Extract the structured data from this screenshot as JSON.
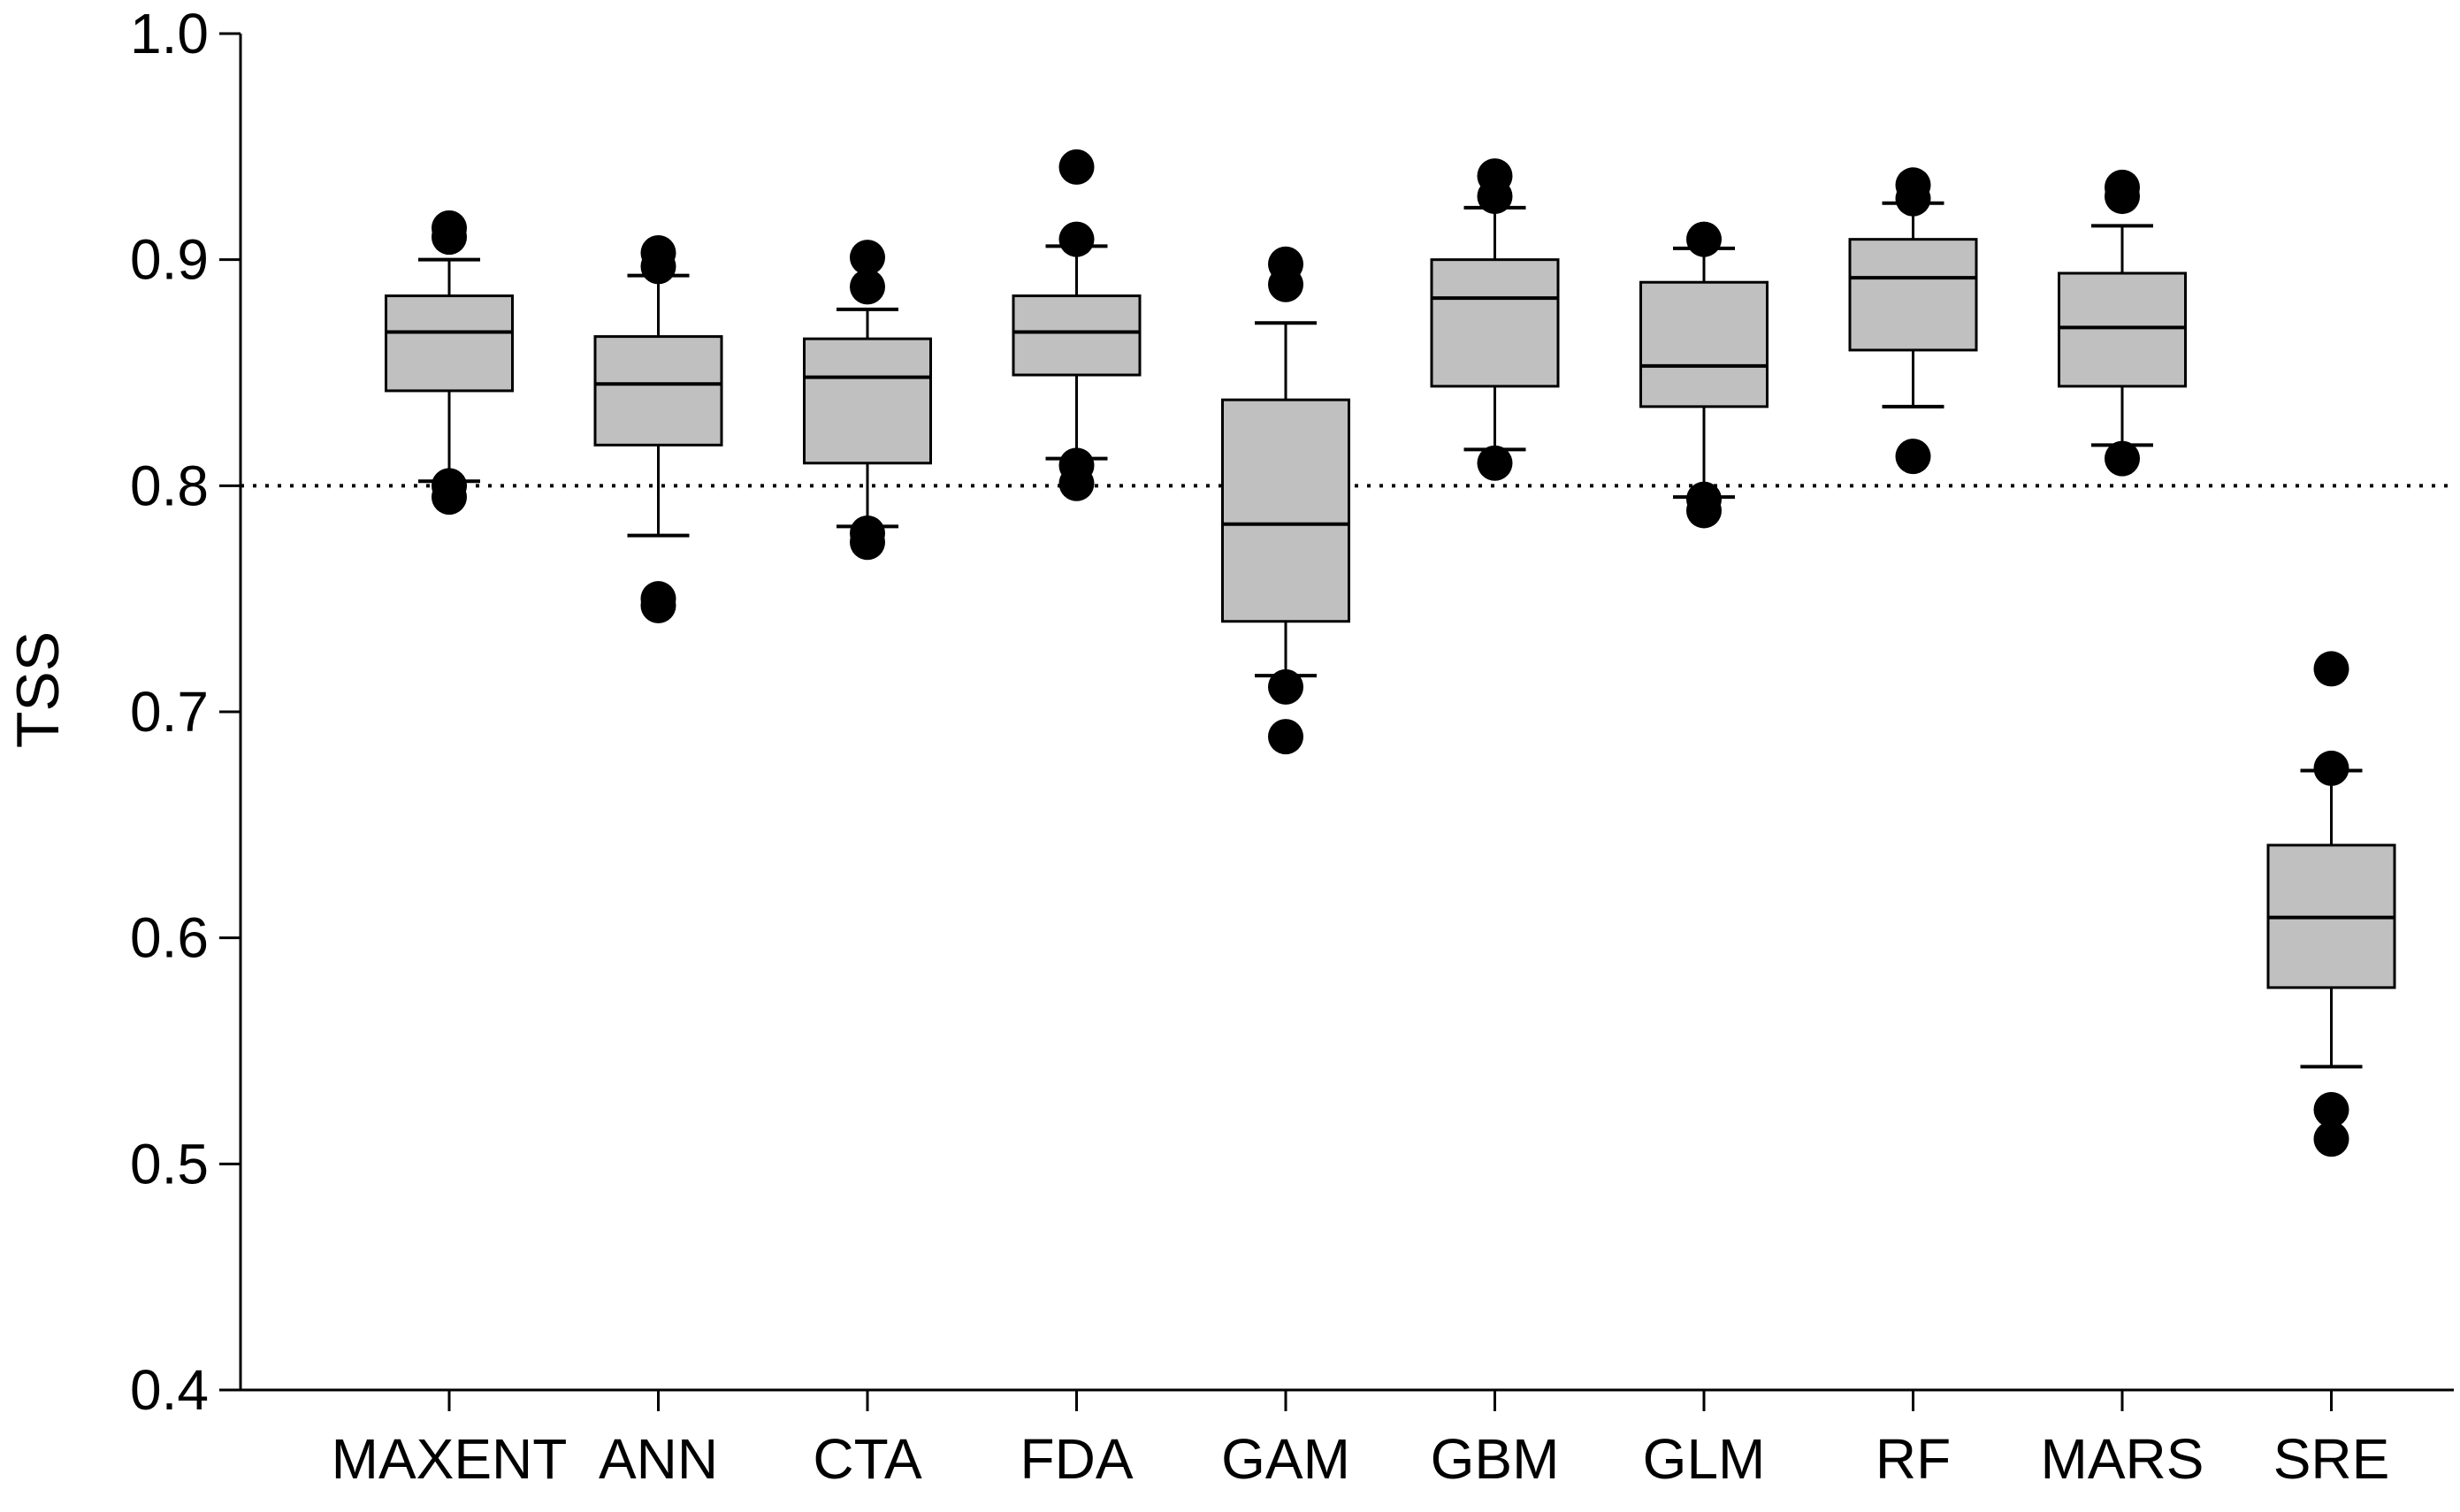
{
  "chart_data": {
    "type": "box",
    "title": "",
    "xlabel": "",
    "ylabel": "TSS",
    "ylim": [
      0.4,
      1.0
    ],
    "yticks": [
      "0.4",
      "0.5",
      "0.6",
      "0.7",
      "0.8",
      "0.9",
      "1.0"
    ],
    "reference_line": 0.8,
    "categories": [
      "MAXENT",
      "ANN",
      "CTA",
      "FDA",
      "GAM",
      "GBM",
      "GLM",
      "RF",
      "MARS",
      "SRE"
    ],
    "boxes": [
      {
        "name": "MAXENT",
        "whisker_low": 0.802,
        "q1": 0.842,
        "median": 0.868,
        "q3": 0.884,
        "whisker_high": 0.9,
        "outliers": [
          0.795,
          0.8,
          0.91,
          0.914
        ]
      },
      {
        "name": "ANN",
        "whisker_low": 0.778,
        "q1": 0.818,
        "median": 0.845,
        "q3": 0.866,
        "whisker_high": 0.893,
        "outliers": [
          0.747,
          0.75,
          0.897,
          0.903
        ]
      },
      {
        "name": "CTA",
        "whisker_low": 0.782,
        "q1": 0.81,
        "median": 0.848,
        "q3": 0.865,
        "whisker_high": 0.878,
        "outliers": [
          0.775,
          0.779,
          0.888,
          0.901
        ]
      },
      {
        "name": "FDA",
        "whisker_low": 0.812,
        "q1": 0.849,
        "median": 0.868,
        "q3": 0.884,
        "whisker_high": 0.906,
        "outliers": [
          0.801,
          0.809,
          0.909,
          0.941
        ]
      },
      {
        "name": "GAM",
        "whisker_low": 0.716,
        "q1": 0.74,
        "median": 0.783,
        "q3": 0.838,
        "whisker_high": 0.872,
        "outliers": [
          0.689,
          0.711,
          0.889,
          0.898
        ]
      },
      {
        "name": "GBM",
        "whisker_low": 0.816,
        "q1": 0.844,
        "median": 0.883,
        "q3": 0.9,
        "whisker_high": 0.923,
        "outliers": [
          0.81,
          0.928,
          0.937
        ]
      },
      {
        "name": "GLM",
        "whisker_low": 0.795,
        "q1": 0.835,
        "median": 0.853,
        "q3": 0.89,
        "whisker_high": 0.905,
        "outliers": [
          0.789,
          0.794,
          0.909
        ]
      },
      {
        "name": "RF",
        "whisker_low": 0.835,
        "q1": 0.86,
        "median": 0.892,
        "q3": 0.909,
        "whisker_high": 0.925,
        "outliers": [
          0.813,
          0.927,
          0.933
        ]
      },
      {
        "name": "MARS",
        "whisker_low": 0.818,
        "q1": 0.844,
        "median": 0.87,
        "q3": 0.894,
        "whisker_high": 0.915,
        "outliers": [
          0.812,
          0.928,
          0.932
        ]
      },
      {
        "name": "SRE",
        "whisker_low": 0.543,
        "q1": 0.578,
        "median": 0.609,
        "q3": 0.641,
        "whisker_high": 0.674,
        "outliers": [
          0.511,
          0.524,
          0.675,
          0.719
        ]
      }
    ]
  }
}
